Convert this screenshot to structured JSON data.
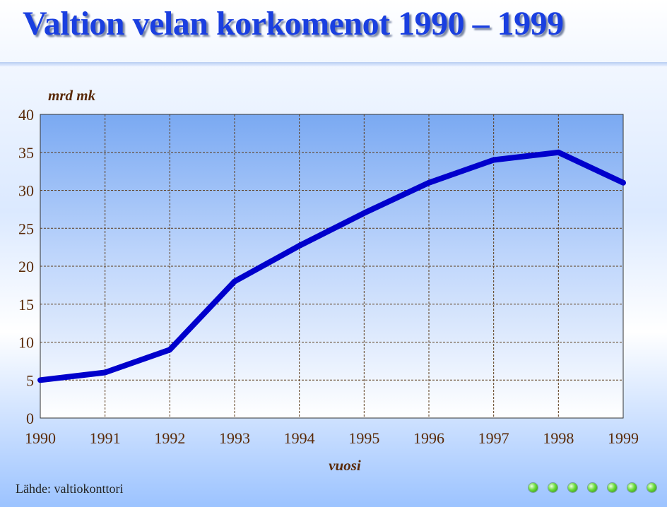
{
  "title": "Valtion velan korkomenot 1990 – 1999",
  "source": "Lähde: valtiokonttori",
  "colors": {
    "line": "#0000cc",
    "title": "#1a3fe0",
    "tick_text": "#5a2a08",
    "grid": "#5a3a1a"
  },
  "nav_dots": [
    "green-dot",
    "green-dot",
    "green-dot",
    "green-dot",
    "green-dot",
    "green-dot",
    "green-dot"
  ],
  "chart_data": {
    "type": "line",
    "title": "Valtion velan korkomenot 1990 – 1999",
    "ylabel": "mrd mk",
    "xlabel": "vuosi",
    "x": [
      "1990",
      "1991",
      "1992",
      "1993",
      "1994",
      "1995",
      "1996",
      "1997",
      "1998",
      "1999"
    ],
    "series": [
      {
        "values": [
          5,
          6,
          9,
          18,
          22.7,
          27,
          31,
          34,
          35,
          31
        ]
      }
    ],
    "ylim": [
      0,
      40
    ],
    "yticks": [
      0,
      5,
      10,
      15,
      20,
      25,
      30,
      35,
      40
    ],
    "grid": true
  }
}
